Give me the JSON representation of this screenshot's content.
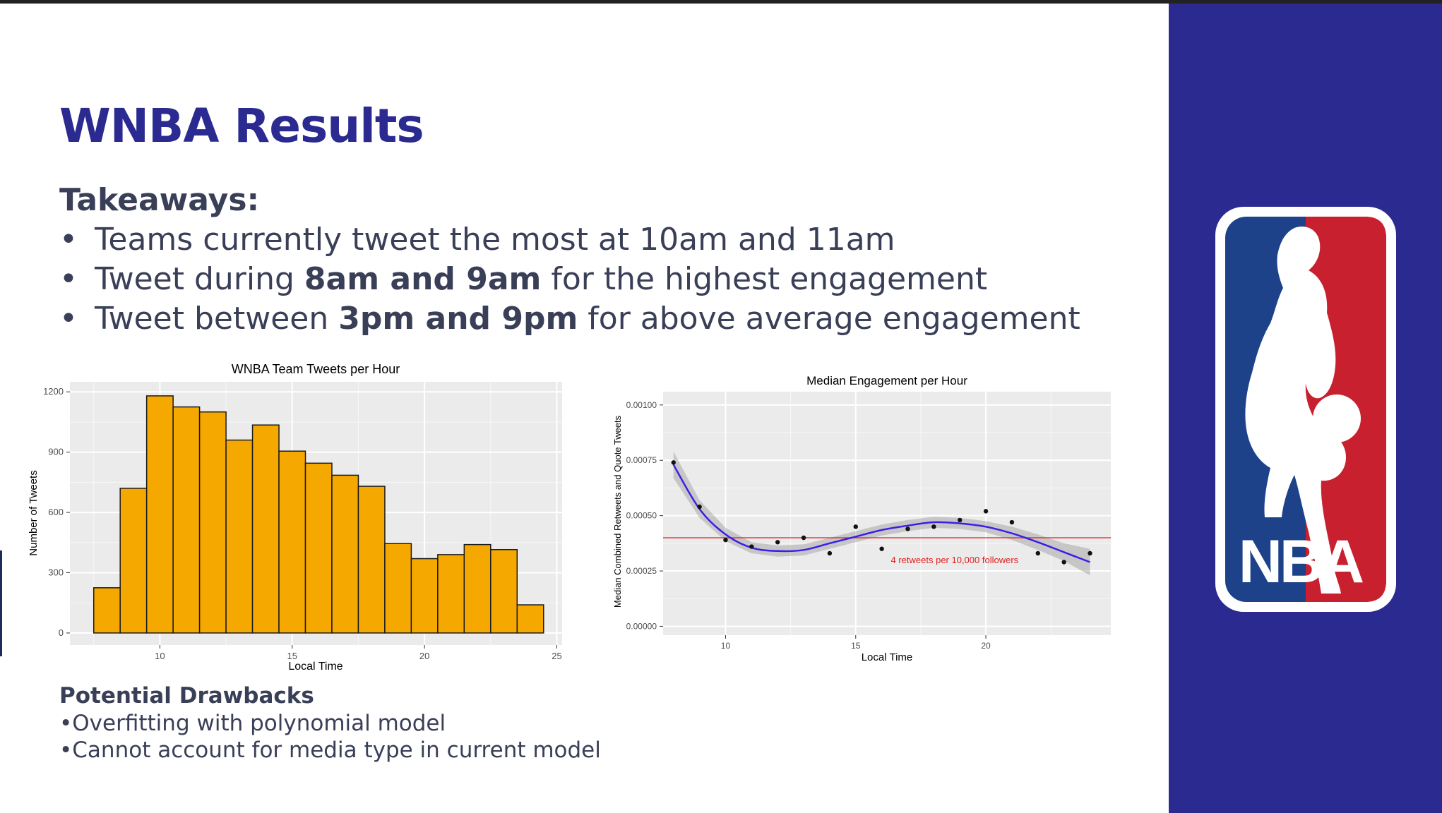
{
  "slide": {
    "title": "WNBA Results",
    "takeaways_heading": "Takeaways:",
    "bullets": [
      {
        "pre": "Teams currently tweet the most at 10am and 11am",
        "bold": "",
        "post": ""
      },
      {
        "pre": "Tweet during ",
        "bold": "8am and 9am",
        "post": " for the highest engagement"
      },
      {
        "pre": "Tweet between ",
        "bold": "3pm and 9pm",
        "post": " for above average engagement"
      }
    ],
    "bullet_glyph": "•",
    "drawbacks_heading": "Potential Drawbacks",
    "drawbacks": [
      "•Overfitting with polynomial model",
      "•Cannot account for media type in current model"
    ],
    "logo_text": "NBA"
  },
  "colors": {
    "title": "#2b2a91",
    "text": "#3a3f58",
    "panel": "#2b2a91",
    "bar_fill": "#f5a800",
    "plot_bg": "#ebebeb",
    "smooth_line": "#3b1ee8",
    "ref_line": "#e02020",
    "logo_red": "#c9202f",
    "logo_blue": "#1d428a"
  },
  "chart_data": [
    {
      "type": "bar",
      "title": "WNBA Team Tweets per Hour",
      "xlabel": "Local Time",
      "ylabel": "Number of Tweets",
      "bin_width": 1,
      "x": [
        8,
        9,
        10,
        11,
        12,
        13,
        14,
        15,
        16,
        17,
        18,
        19,
        20,
        21,
        22,
        23,
        24
      ],
      "values": [
        225,
        720,
        1180,
        1125,
        1100,
        960,
        1035,
        905,
        845,
        785,
        730,
        445,
        370,
        390,
        440,
        415,
        140
      ],
      "xlim": [
        6.6,
        25.2
      ],
      "ylim": [
        -60,
        1250
      ],
      "xticks": [
        10,
        15,
        20,
        25
      ],
      "yticks": [
        0,
        300,
        600,
        900,
        1200
      ],
      "grid": true
    },
    {
      "type": "scatter",
      "title": "Median Engagement per Hour",
      "xlabel": "Local Time",
      "ylabel": "Median Combined Retweets and Quote Tweets",
      "x": [
        8,
        9,
        10,
        11,
        12,
        13,
        14,
        15,
        16,
        17,
        18,
        19,
        20,
        21,
        22,
        23,
        24
      ],
      "y": [
        0.00074,
        0.00054,
        0.00039,
        0.00036,
        0.00038,
        0.0004,
        0.00033,
        0.00045,
        0.00035,
        0.00044,
        0.00045,
        0.00048,
        0.00052,
        0.00047,
        0.00033,
        0.00029,
        0.00033
      ],
      "smooth_x": [
        8,
        9,
        10,
        11,
        12,
        13,
        14,
        15,
        16,
        17,
        18,
        19,
        20,
        21,
        22,
        23,
        24
      ],
      "smooth_y": [
        0.00073,
        0.00053,
        0.000415,
        0.000355,
        0.00034,
        0.000345,
        0.000375,
        0.000405,
        0.000435,
        0.000455,
        0.00047,
        0.000465,
        0.00045,
        0.00042,
        0.00038,
        0.000335,
        0.00029
      ],
      "band_halfwidth": [
        6e-05,
        4e-05,
        3e-05,
        2.5e-05,
        2.5e-05,
        2.5e-05,
        2.5e-05,
        2.5e-05,
        2.5e-05,
        2.5e-05,
        2.5e-05,
        2.5e-05,
        2.5e-05,
        3e-05,
        3.5e-05,
        4e-05,
        6e-05
      ],
      "reference_y": 0.0004,
      "reference_label": "4 retweets per 10,000 followers",
      "xlim": [
        7.6,
        24.8
      ],
      "ylim": [
        -4e-05,
        0.00106
      ],
      "xticks": [
        10,
        15,
        20
      ],
      "yticks": [
        0.0,
        0.00025,
        0.0005,
        0.00075,
        0.001
      ],
      "ytick_labels": [
        "0.00000",
        "0.00025",
        "0.00050",
        "0.00075",
        "0.00100"
      ],
      "grid": true
    }
  ]
}
